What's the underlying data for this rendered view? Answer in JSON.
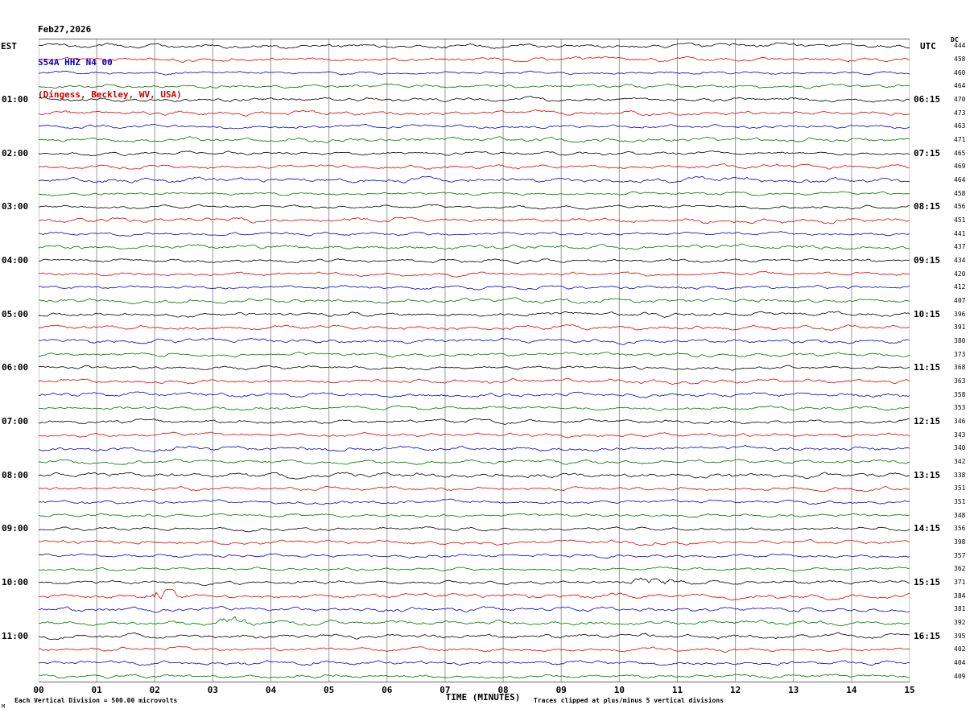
{
  "labels": {
    "left_tz": "EST",
    "right_tz": "UTC",
    "dc": "DC"
  },
  "footer": {
    "left_note": "Each Vertical Division =  500.00 microvolts",
    "right_note": "Traces clipped at plus/minus 5 vertical divisions",
    "corner_mark": "M"
  },
  "colors": {
    "background": "#ffffff",
    "grid": "#999999",
    "frame": "#666666",
    "date_text": "#000000",
    "station_text": "#0000cc",
    "location_text": "#cc0000",
    "trace_cycle_hex": [
      "#000000",
      "#dd0000",
      "#0000cc",
      "#007700"
    ]
  },
  "chart_data": {
    "type": "line",
    "subtype": "helicorder-seismogram",
    "date": "Feb27,2026",
    "station": "S54A HHZ N4 00",
    "location": "(Dingess, Beckley, WV, USA)",
    "xlabel": "TIME (MINUTES)",
    "x_range_minutes": [
      0,
      15
    ],
    "x_tick_labels": [
      "00",
      "01",
      "02",
      "03",
      "04",
      "05",
      "06",
      "07",
      "08",
      "09",
      "10",
      "11",
      "12",
      "13",
      "14",
      "15"
    ],
    "rows": 48,
    "minutes_per_row": 15,
    "trace_color_cycle": [
      "black",
      "red",
      "blue",
      "green"
    ],
    "left_time_labels_est": [
      "01:00",
      "02:00",
      "03:00",
      "04:00",
      "05:00",
      "06:00",
      "07:00",
      "08:00",
      "09:00",
      "10:00",
      "11:00"
    ],
    "right_time_labels_utc": [
      "06:15",
      "07:15",
      "08:15",
      "09:15",
      "10:15",
      "11:15",
      "12:15",
      "13:15",
      "14:15",
      "15:15",
      "16:15"
    ],
    "dc_offsets": [
      444,
      458,
      460,
      464,
      470,
      473,
      463,
      471,
      465,
      469,
      464,
      458,
      456,
      451,
      441,
      437,
      434,
      420,
      412,
      407,
      396,
      391,
      380,
      373,
      368,
      363,
      358,
      353,
      346,
      343,
      340,
      342,
      338,
      351,
      351,
      348,
      356,
      398,
      357,
      362,
      371,
      384,
      381,
      392,
      395,
      402,
      404,
      409
    ],
    "vertical_division_microvolts": 500.0,
    "clip_divisions": 5,
    "noise_description": "continuous low-amplitude background seismic noise on all 48 quarter-hour traces",
    "events": [
      {
        "row": 40,
        "minute": 10.7,
        "amplitude": 2.2,
        "width": 0.3,
        "note": "small burst on 10:00 EST black trace"
      },
      {
        "row": 41,
        "minute": 2.1,
        "amplitude": 3.5,
        "width": 0.2,
        "note": "spike on 10:15 EST red trace"
      },
      {
        "row": 43,
        "minute": 3.4,
        "amplitude": 1.8,
        "width": 0.18,
        "note": "small burst on 10:45 EST green trace"
      }
    ]
  }
}
